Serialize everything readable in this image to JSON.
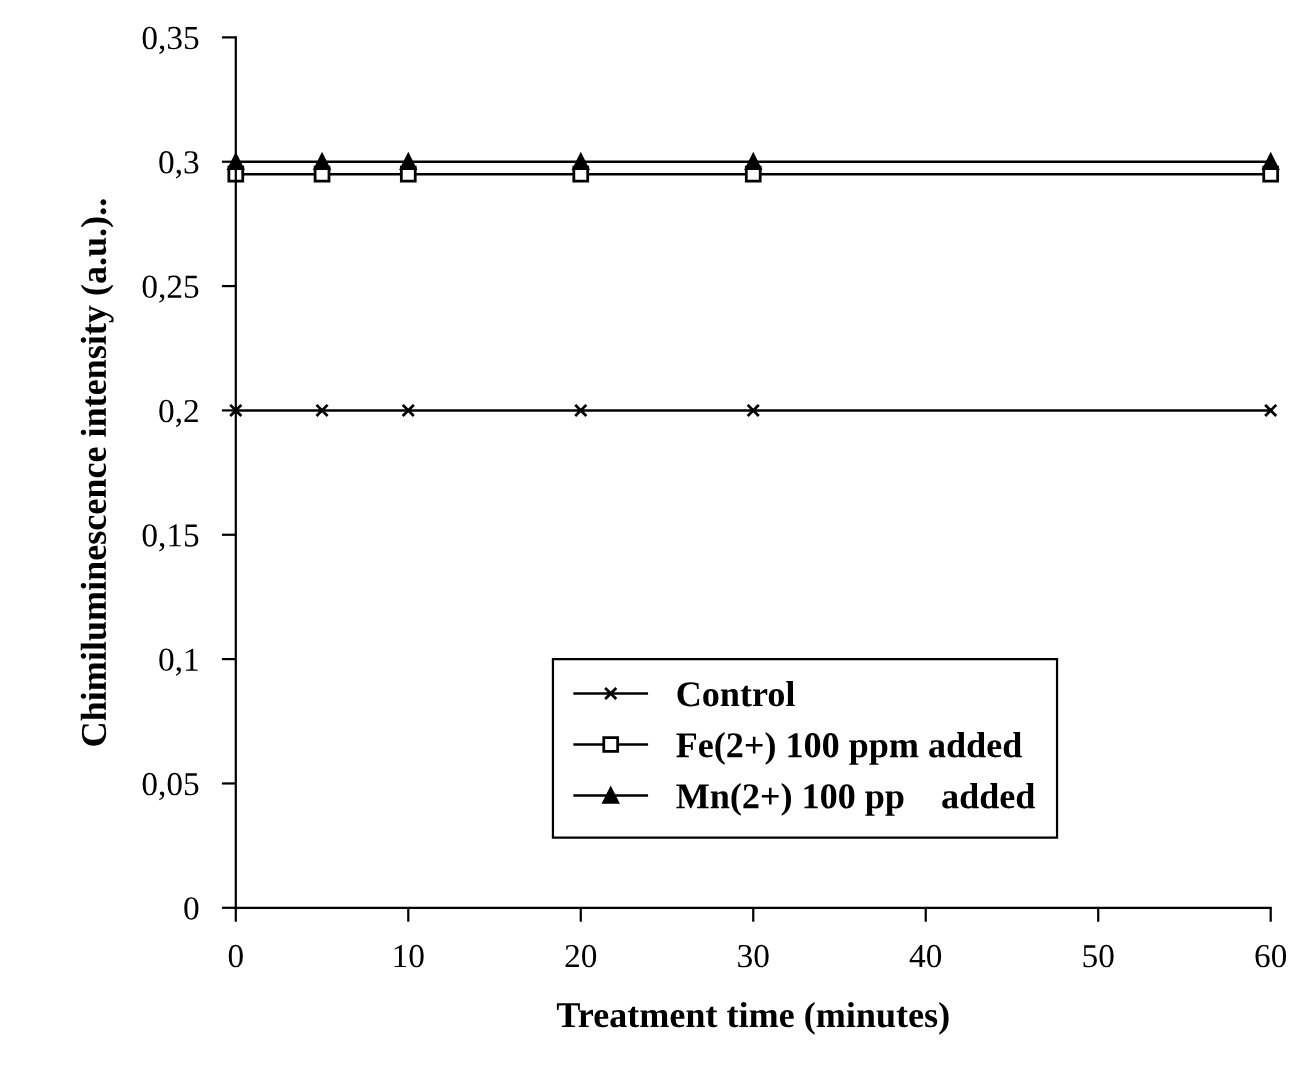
{
  "chart_data": {
    "type": "line",
    "xlabel": "Treatment time (minutes)",
    "ylabel": "Chimiluminescence intensity (a.u.)..",
    "xlim": [
      0,
      60
    ],
    "xticks": [
      0,
      10,
      20,
      30,
      40,
      50,
      60
    ],
    "ylim": [
      0,
      0.35
    ],
    "yticks": [
      {
        "value": 0,
        "label": "0"
      },
      {
        "value": 0.05,
        "label": "0,05"
      },
      {
        "value": 0.1,
        "label": "0,1"
      },
      {
        "value": 0.15,
        "label": "0,15"
      },
      {
        "value": 0.2,
        "label": "0,2"
      },
      {
        "value": 0.25,
        "label": "0,25"
      },
      {
        "value": 0.3,
        "label": "0,3"
      },
      {
        "value": 0.35,
        "label": "0,35"
      }
    ],
    "x": [
      0,
      5,
      10,
      20,
      30,
      60
    ],
    "grid": false,
    "legend": "bottom",
    "line_style": "solid",
    "series": [
      {
        "name": "Control",
        "color": "#000000",
        "marker": "cross",
        "values": [
          0.2,
          0.2,
          0.2,
          0.2,
          0.2,
          0.2
        ]
      },
      {
        "name": "Fe(2+) 100 ppm added",
        "color": "#000000",
        "marker": "square",
        "values": [
          0.295,
          0.295,
          0.295,
          0.295,
          0.295,
          0.295
        ]
      },
      {
        "name": "Mn(2+) 100 pp    added",
        "color": "#000000",
        "marker": "triangle",
        "values": [
          0.3,
          0.3,
          0.3,
          0.3,
          0.3,
          0.3
        ]
      }
    ]
  }
}
